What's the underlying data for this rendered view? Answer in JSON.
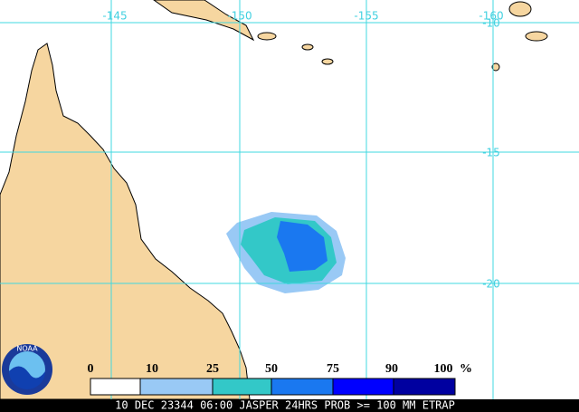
{
  "map": {
    "lon_labels": [
      "-145",
      "-150",
      "-155",
      "-160"
    ],
    "lat_labels": [
      "-10",
      "-15",
      "-20"
    ],
    "legend": {
      "labels": [
        "0",
        "10",
        "25",
        "50",
        "75",
        "90",
        "100"
      ],
      "unit": "%",
      "colors": [
        "#ffffff",
        "#99c9f5",
        "#33c8c8",
        "#1a78f0",
        "#0000ff",
        "#0000a0"
      ]
    },
    "logo": "NOAA",
    "caption": "10 DEC 23344 06:00 JASPER 24HRS PROB >= 100 MM ETRAP"
  }
}
